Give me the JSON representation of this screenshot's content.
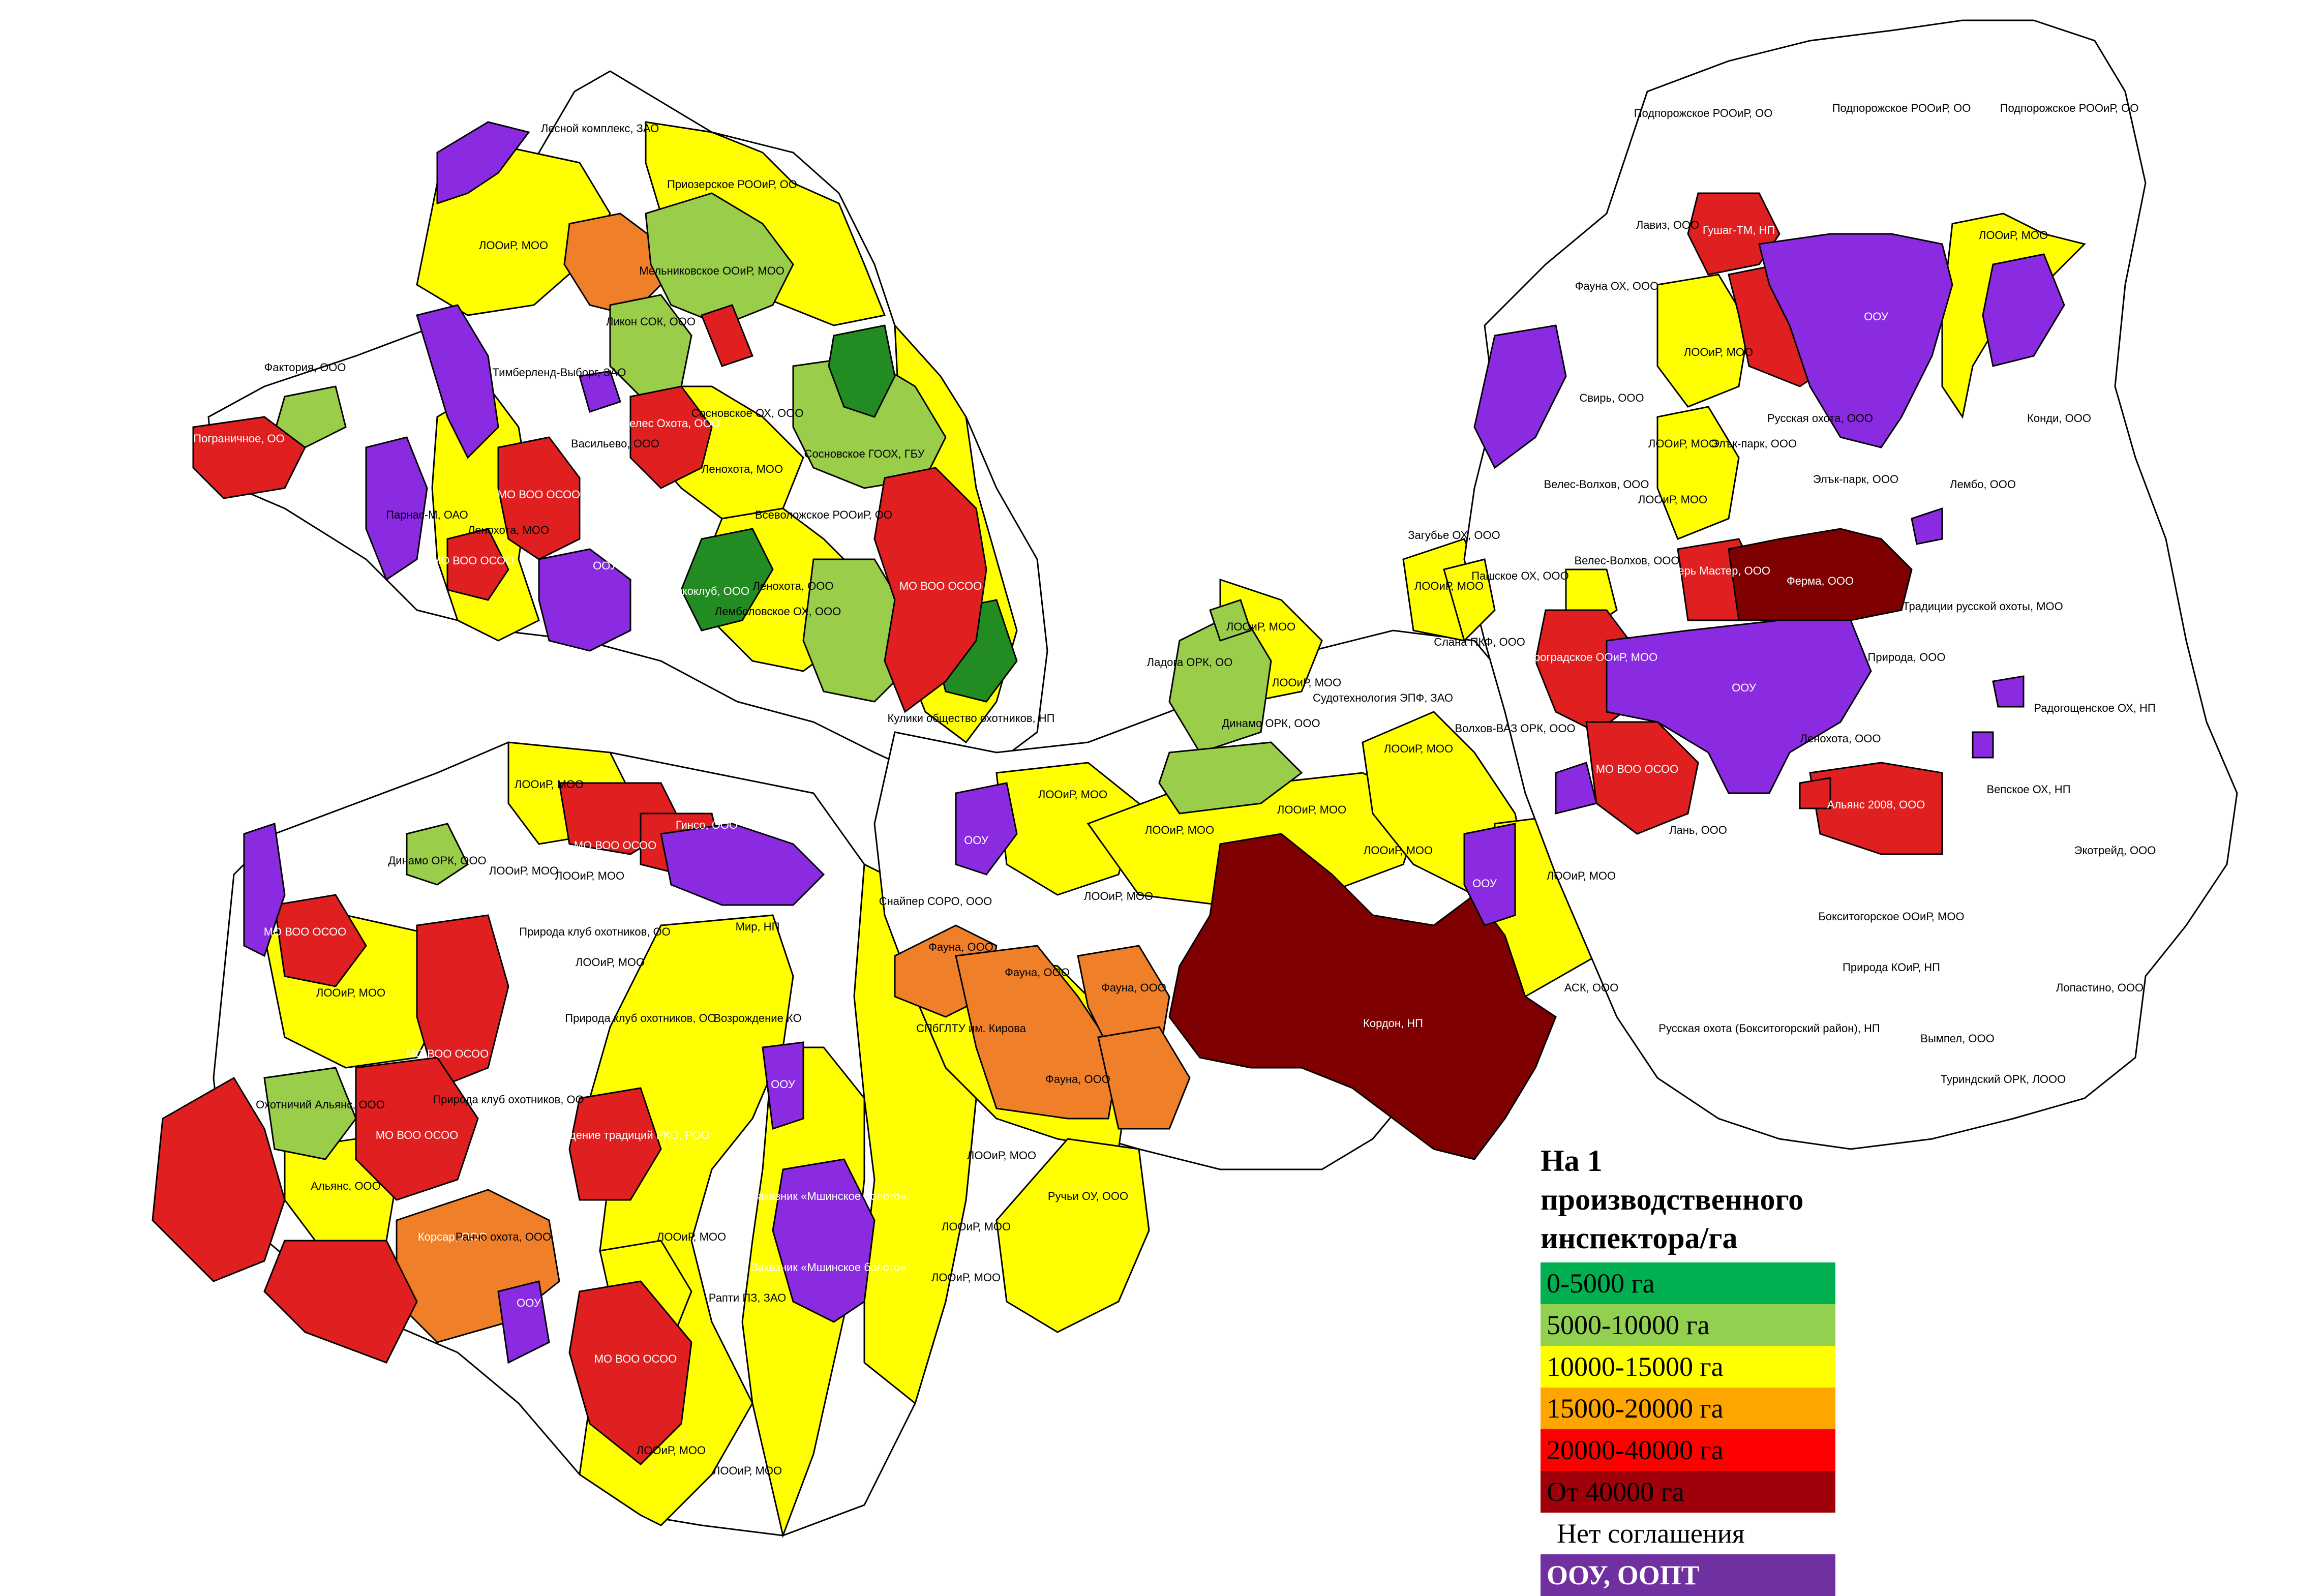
{
  "colors": {
    "c0": "#00b050",
    "c1": "#92d050",
    "c2": "#ffff00",
    "c3": "#ffa500",
    "c4": "#ff0000",
    "c5": "#a0000a",
    "none": "#ffffff",
    "oopt": "#7030a0",
    "region_dark_green": "#228b22",
    "region_orange": "#f07f2a",
    "region_red": "#e02020",
    "region_maroon": "#7f0000",
    "region_light_green": "#9acd4a",
    "region_yellow": "#ffff00",
    "region_purple": "#8a2be2"
  },
  "legend": {
    "title": "На 1 производственного инспектора/га",
    "items": [
      {
        "label": "0-5000 га",
        "color": "#00b050"
      },
      {
        "label": "5000-10000 га",
        "color": "#92d050"
      },
      {
        "label": "10000-15000 га",
        "color": "#ffff00"
      },
      {
        "label": "15000-20000 га",
        "color": "#ffa500"
      },
      {
        "label": "20000-40000 га",
        "color": "#ff0000"
      },
      {
        "label": "От 40000 га",
        "color": "#a0000a"
      },
      {
        "label": "Нет соглашения",
        "color": "#ffffff"
      },
      {
        "label": "ООУ, ООПТ",
        "color": "#7030a0"
      }
    ]
  },
  "labels": {
    "l1": "Лесной комплекс, ЗАО",
    "l2": "Приозерское РООиР, ОО",
    "l3": "ЛООиР, МОО",
    "l4": "Мельниковское ООиР, МОО",
    "l5": "Ликон СОК, ООО",
    "l6": "Фактория, ООО",
    "l7": "Тимберленд-Выборг, ЗАО",
    "l8": "Велес Охота, ООО",
    "l9": "Сосновское ОХ, ООО",
    "l10": "Сосновское ГООХ, ГБУ",
    "l11": "Пограничное, ОО",
    "l12": "Васильево, ООО",
    "l13": "Ленохота, МОО",
    "l14": "МО ВОО ОСОО",
    "l15": "Всеволожское РООиР, ОО",
    "l16": "Парнас-М, ОАО",
    "l17": "Ленохота, МОО",
    "l18": "МО ВОО ОСОО",
    "l19": "ООУ",
    "l20": "Экоклуб, ООО",
    "l21": "Ленохота, ООО",
    "l22": "Лемболовское ОХ, ООО",
    "l23": "Кулики общество охотников, НП",
    "l24": "Подпорожское РООиР, ОО",
    "l25": "Подпорожское РООиР, ОО",
    "l26": "Подпорожское РООиР, ОО",
    "l27": "Лавиз, ООО",
    "l28": "Гушаг-ТМ, НП",
    "l29": "ЛООиР, МОО",
    "l30": "ООУ",
    "l31": "Фауна ОХ, ООО",
    "l32": "ЛООиР, МОО",
    "l33": "Свирь, ООО",
    "l34": "Русская охота, ООО",
    "l35": "Конди, ООО",
    "l36": "Элък-парк, ООО",
    "l37": "Элък-парк, ООО",
    "l38": "Лембо, ООО",
    "l39": "Велес-Волхов, ООО",
    "l40": "ЛООиР, МОО",
    "l41": "ЛООиР, МОО",
    "l42": "Загубье ОХ, ООО",
    "l43": "Пашское ОХ, ООО",
    "l44": "Велес-Волхов, ООО",
    "l45": "Егерь Мастер, ООО",
    "l46": "Ферма, ООО",
    "l47": "Традиции русской охоты, МОО",
    "l48": "ЛООиР, МОО",
    "l49": "ЛООиР, МОО",
    "l50": "ЛООиР, МОО",
    "l51": "Ладога ОРК, ОО",
    "l52": "Динамо ОРК, ООО",
    "l53": "Судотехнология ЭПФ, ЗАО",
    "l54": "Слана ПКФ, ООО",
    "l55": "Петроградское ООиР, МОО",
    "l56": "ООУ",
    "l57": "Природа, ООО",
    "l58": "Радогощенское ОХ, НП",
    "l59": "Волхов-ВАЗ ОРК, ООО",
    "l60": "МО ВОО ОСОО",
    "l61": "Ленохота, ООО",
    "l62": "Альянс 2008, ООО",
    "l63": "Вепское ОХ, НП",
    "l64": "ЛООиР, МОО",
    "l65": "ЛООиР, МОО",
    "l66": "Лань, ООО",
    "l67": "Экотрейд, ООО",
    "l68": "ЛООиР, МОО",
    "l69": "ЛООиР, МОО",
    "l70": "ЛООиР, МОО",
    "l71": "Бокситогорское ООиР, МОО",
    "l72": "ЛООиР, МОО",
    "l73": "ООУ",
    "l74": "Снайпер СОРО, ООО",
    "l75": "ЛООиР, МОО",
    "l76": "Природа КОиР, НП",
    "l77": "Лопастино, ООО",
    "l78": "ЛООиР, МОО",
    "l79": "Динамо ОРК, ООО",
    "l80": "МО ВОО ОСОО",
    "l81": "Гинсо, ООО",
    "l82": "ЛООиР, МОО",
    "l83": "ЛООиР, МОО",
    "l84": "Мир, НП",
    "l85": "Фауна, ООО",
    "l86": "Фауна, ООО",
    "l87": "Фауна, ООО",
    "l88": "Кордон, НП",
    "l89": "АСК, ООО",
    "l90": "МО ВОО ОСОО",
    "l91": "Природа клуб охотников, ОО",
    "l92": "Природа клуб охотников, ОО",
    "l93": "Возрождение КО",
    "l94": "СПбГЛТУ им. Кирова",
    "l95": "Русская охота (Бокситогорский район), НП",
    "l96": "Вымпел, ООО",
    "l97": "ЛООиР, МОО",
    "l98": "МО ВОО ОСОО",
    "l99": "Природа клуб охотников, ОО",
    "l100": "ООУ",
    "l101": "Фауна, ООО",
    "l102": "Туриндский ОРК, ЛООО",
    "l103": "Охотничий Альянс, ООО",
    "l104": "МО ВОО ОСОО",
    "l105": "Возрождение традиций РКО, РОО",
    "l106": "ЛООиР, МОО",
    "l107": "Альянс, ООО",
    "l108": "Ручьи ОУ, ООО",
    "l109": "Корсар, ООО",
    "l110": "Заказник «Мшинское болото»",
    "l111": "ЛООиР, МОО",
    "l112": "Ранчо охота, ООО",
    "l113": "ЛООиР, МОО",
    "l114": "Заказник «Мшинское болото»",
    "l115": "ЛООиР, МОО",
    "l116": "Рапти ПЗ, ЗАО",
    "l117": "ООУ",
    "l118": "МО ВОО ОСОО",
    "l119": "ЛООиР, МОО",
    "l120": "ЛООиР, МОО",
    "l121": "ООУ",
    "l122": "ЛООиР, МОО",
    "l123": "ООУ"
  }
}
